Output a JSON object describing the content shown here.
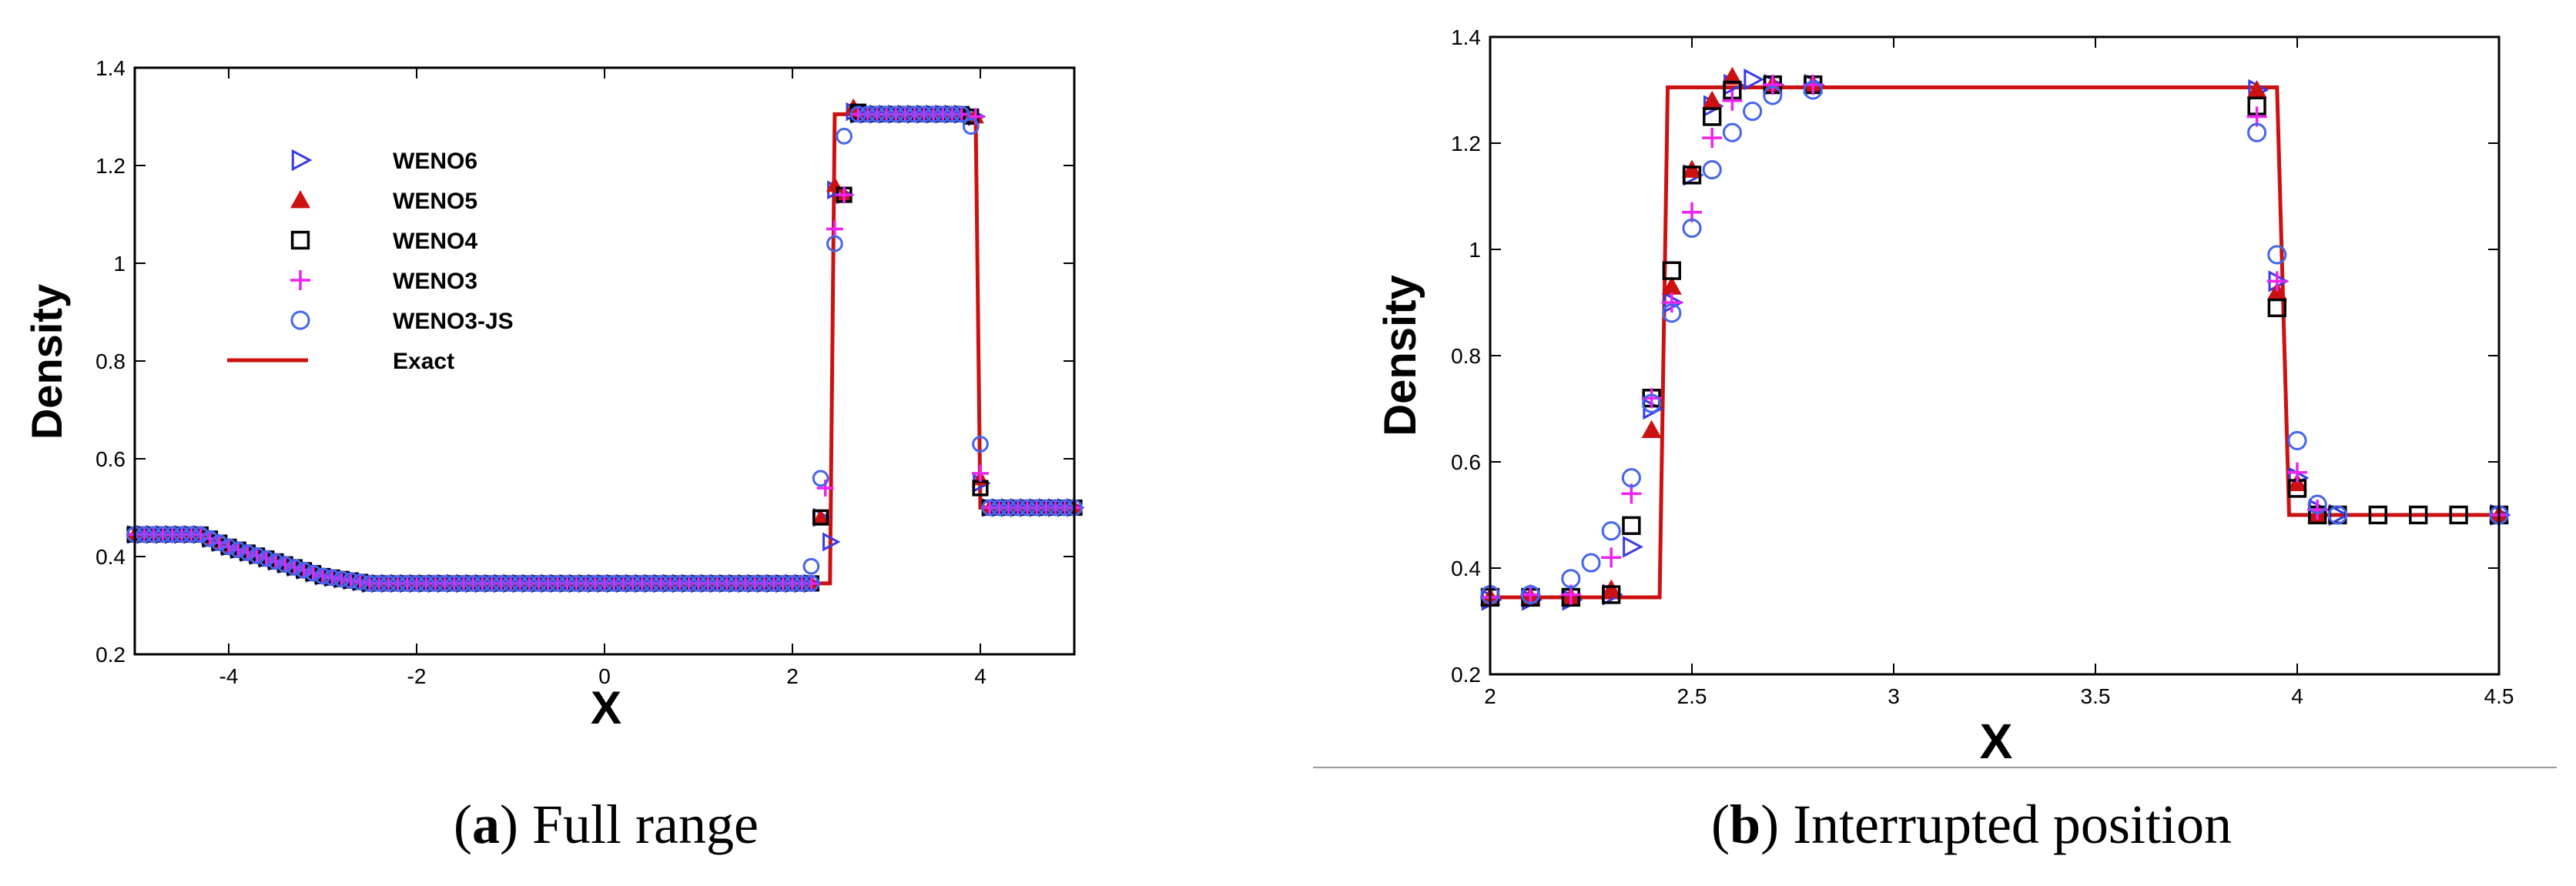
{
  "colors": {
    "WENO6": "#3a3ae6",
    "WENO5": "#cc1111",
    "WENO4": "#000000",
    "WENO3": "#ee22ee",
    "WENO3-JS": "#4466ee",
    "Exact": "#cc1111"
  },
  "chart_data": [
    {
      "type": "scatter",
      "xlabel": "X",
      "ylabel": "Density",
      "xlim": [
        -5,
        5
      ],
      "ylim": [
        0.2,
        1.4
      ],
      "xticks": [
        -4,
        -2,
        0,
        2,
        4
      ],
      "yticks": [
        0.2,
        0.4,
        0.6,
        0.8,
        1,
        1.2,
        1.4
      ],
      "caption_letter": "a",
      "caption_text": "Full range",
      "legend": {
        "placement": "upper-left",
        "entries": [
          {
            "name": "WENO6",
            "marker": "triangle-right"
          },
          {
            "name": "WENO5",
            "marker": "triangle-up"
          },
          {
            "name": "WENO4",
            "marker": "square"
          },
          {
            "name": "WENO3",
            "marker": "plus"
          },
          {
            "name": "WENO3-JS",
            "marker": "circle"
          },
          {
            "name": "Exact",
            "marker": "line"
          }
        ]
      },
      "exact": [
        [
          -5,
          0.445
        ],
        [
          -4.3,
          0.445
        ],
        [
          -4,
          0.42
        ],
        [
          -3.5,
          0.39
        ],
        [
          -3,
          0.36
        ],
        [
          -2.5,
          0.345
        ],
        [
          2.4,
          0.345
        ],
        [
          2.45,
          1.305
        ],
        [
          3.95,
          1.305
        ],
        [
          4.0,
          0.5
        ],
        [
          5,
          0.5
        ]
      ],
      "series": [
        {
          "name": "WENO6",
          "points": [
            [
              2.3,
              0.48
            ],
            [
              2.4,
              0.43
            ],
            [
              2.45,
              1.15
            ],
            [
              2.55,
              1.14
            ],
            [
              2.65,
              1.31
            ],
            [
              3.95,
              1.3
            ],
            [
              4.0,
              0.55
            ]
          ]
        },
        {
          "name": "WENO5",
          "points": [
            [
              2.3,
              0.48
            ],
            [
              2.45,
              1.16
            ],
            [
              2.55,
              1.14
            ],
            [
              2.65,
              1.32
            ],
            [
              3.95,
              1.3
            ],
            [
              4.0,
              0.56
            ]
          ]
        },
        {
          "name": "WENO4",
          "points": [
            [
              2.3,
              0.48
            ],
            [
              2.55,
              1.14
            ],
            [
              2.7,
              1.31
            ],
            [
              3.9,
              1.3
            ],
            [
              4.0,
              0.54
            ]
          ]
        },
        {
          "name": "WENO3",
          "points": [
            [
              2.35,
              0.54
            ],
            [
              2.45,
              1.07
            ],
            [
              2.55,
              1.14
            ],
            [
              3.95,
              1.3
            ],
            [
              4.0,
              0.57
            ]
          ]
        },
        {
          "name": "WENO3-JS",
          "points": [
            [
              2.2,
              0.38
            ],
            [
              2.3,
              0.56
            ],
            [
              2.45,
              1.04
            ],
            [
              2.55,
              1.26
            ],
            [
              3.9,
              1.28
            ],
            [
              4.0,
              0.63
            ]
          ]
        }
      ]
    },
    {
      "type": "scatter",
      "xlabel": "X",
      "ylabel": "Density",
      "xlim": [
        2,
        4.5
      ],
      "ylim": [
        0.2,
        1.4
      ],
      "xticks": [
        2,
        2.5,
        3,
        3.5,
        4,
        4.5
      ],
      "yticks": [
        0.2,
        0.4,
        0.6,
        0.8,
        1,
        1.2,
        1.4
      ],
      "caption_letter": "b",
      "caption_text": "Interrupted position",
      "exact": [
        [
          2,
          0.345
        ],
        [
          2.42,
          0.345
        ],
        [
          2.44,
          1.305
        ],
        [
          3.95,
          1.305
        ],
        [
          3.98,
          0.5
        ],
        [
          4.5,
          0.5
        ]
      ],
      "series": [
        {
          "name": "WENO6",
          "points": [
            [
              2,
              0.34
            ],
            [
              2.1,
              0.34
            ],
            [
              2.2,
              0.34
            ],
            [
              2.3,
              0.35
            ],
            [
              2.35,
              0.44
            ],
            [
              2.4,
              0.7
            ],
            [
              2.45,
              0.9
            ],
            [
              2.5,
              1.14
            ],
            [
              2.55,
              1.27
            ],
            [
              2.6,
              1.31
            ],
            [
              2.65,
              1.32
            ],
            [
              2.7,
              1.31
            ],
            [
              2.8,
              1.31
            ],
            [
              3.9,
              1.3
            ],
            [
              3.95,
              0.94
            ],
            [
              4.0,
              0.57
            ],
            [
              4.05,
              0.51
            ],
            [
              4.1,
              0.5
            ],
            [
              4.5,
              0.5
            ]
          ]
        },
        {
          "name": "WENO5",
          "points": [
            [
              2,
              0.345
            ],
            [
              2.1,
              0.345
            ],
            [
              2.2,
              0.345
            ],
            [
              2.3,
              0.36
            ],
            [
              2.4,
              0.66
            ],
            [
              2.45,
              0.93
            ],
            [
              2.5,
              1.15
            ],
            [
              2.55,
              1.28
            ],
            [
              2.6,
              1.325
            ],
            [
              2.7,
              1.31
            ],
            [
              2.8,
              1.31
            ],
            [
              3.9,
              1.3
            ],
            [
              3.95,
              0.92
            ],
            [
              4.0,
              0.56
            ],
            [
              4.05,
              0.5
            ],
            [
              4.5,
              0.5
            ]
          ]
        },
        {
          "name": "WENO4",
          "points": [
            [
              2,
              0.345
            ],
            [
              2.1,
              0.345
            ],
            [
              2.2,
              0.345
            ],
            [
              2.3,
              0.35
            ],
            [
              2.35,
              0.48
            ],
            [
              2.4,
              0.72
            ],
            [
              2.45,
              0.96
            ],
            [
              2.5,
              1.14
            ],
            [
              2.55,
              1.25
            ],
            [
              2.6,
              1.3
            ],
            [
              2.7,
              1.31
            ],
            [
              2.8,
              1.31
            ],
            [
              3.9,
              1.27
            ],
            [
              3.95,
              0.89
            ],
            [
              4.0,
              0.55
            ],
            [
              4.05,
              0.5
            ],
            [
              4.1,
              0.5
            ],
            [
              4.2,
              0.5
            ],
            [
              4.3,
              0.5
            ],
            [
              4.4,
              0.5
            ],
            [
              4.5,
              0.5
            ]
          ]
        },
        {
          "name": "WENO3",
          "points": [
            [
              2,
              0.345
            ],
            [
              2.1,
              0.35
            ],
            [
              2.2,
              0.35
            ],
            [
              2.3,
              0.42
            ],
            [
              2.35,
              0.54
            ],
            [
              2.4,
              0.72
            ],
            [
              2.45,
              0.9
            ],
            [
              2.5,
              1.07
            ],
            [
              2.55,
              1.21
            ],
            [
              2.6,
              1.28
            ],
            [
              2.7,
              1.31
            ],
            [
              2.8,
              1.31
            ],
            [
              3.9,
              1.25
            ],
            [
              3.95,
              0.94
            ],
            [
              4.0,
              0.58
            ],
            [
              4.05,
              0.51
            ],
            [
              4.5,
              0.5
            ]
          ]
        },
        {
          "name": "WENO3-JS",
          "points": [
            [
              2,
              0.35
            ],
            [
              2.1,
              0.35
            ],
            [
              2.2,
              0.38
            ],
            [
              2.25,
              0.41
            ],
            [
              2.3,
              0.47
            ],
            [
              2.35,
              0.57
            ],
            [
              2.4,
              0.71
            ],
            [
              2.45,
              0.88
            ],
            [
              2.5,
              1.04
            ],
            [
              2.55,
              1.15
            ],
            [
              2.6,
              1.22
            ],
            [
              2.65,
              1.26
            ],
            [
              2.7,
              1.29
            ],
            [
              2.8,
              1.3
            ],
            [
              3.9,
              1.22
            ],
            [
              3.95,
              0.99
            ],
            [
              4.0,
              0.64
            ],
            [
              4.05,
              0.52
            ],
            [
              4.1,
              0.5
            ],
            [
              4.5,
              0.5
            ]
          ]
        }
      ]
    }
  ]
}
